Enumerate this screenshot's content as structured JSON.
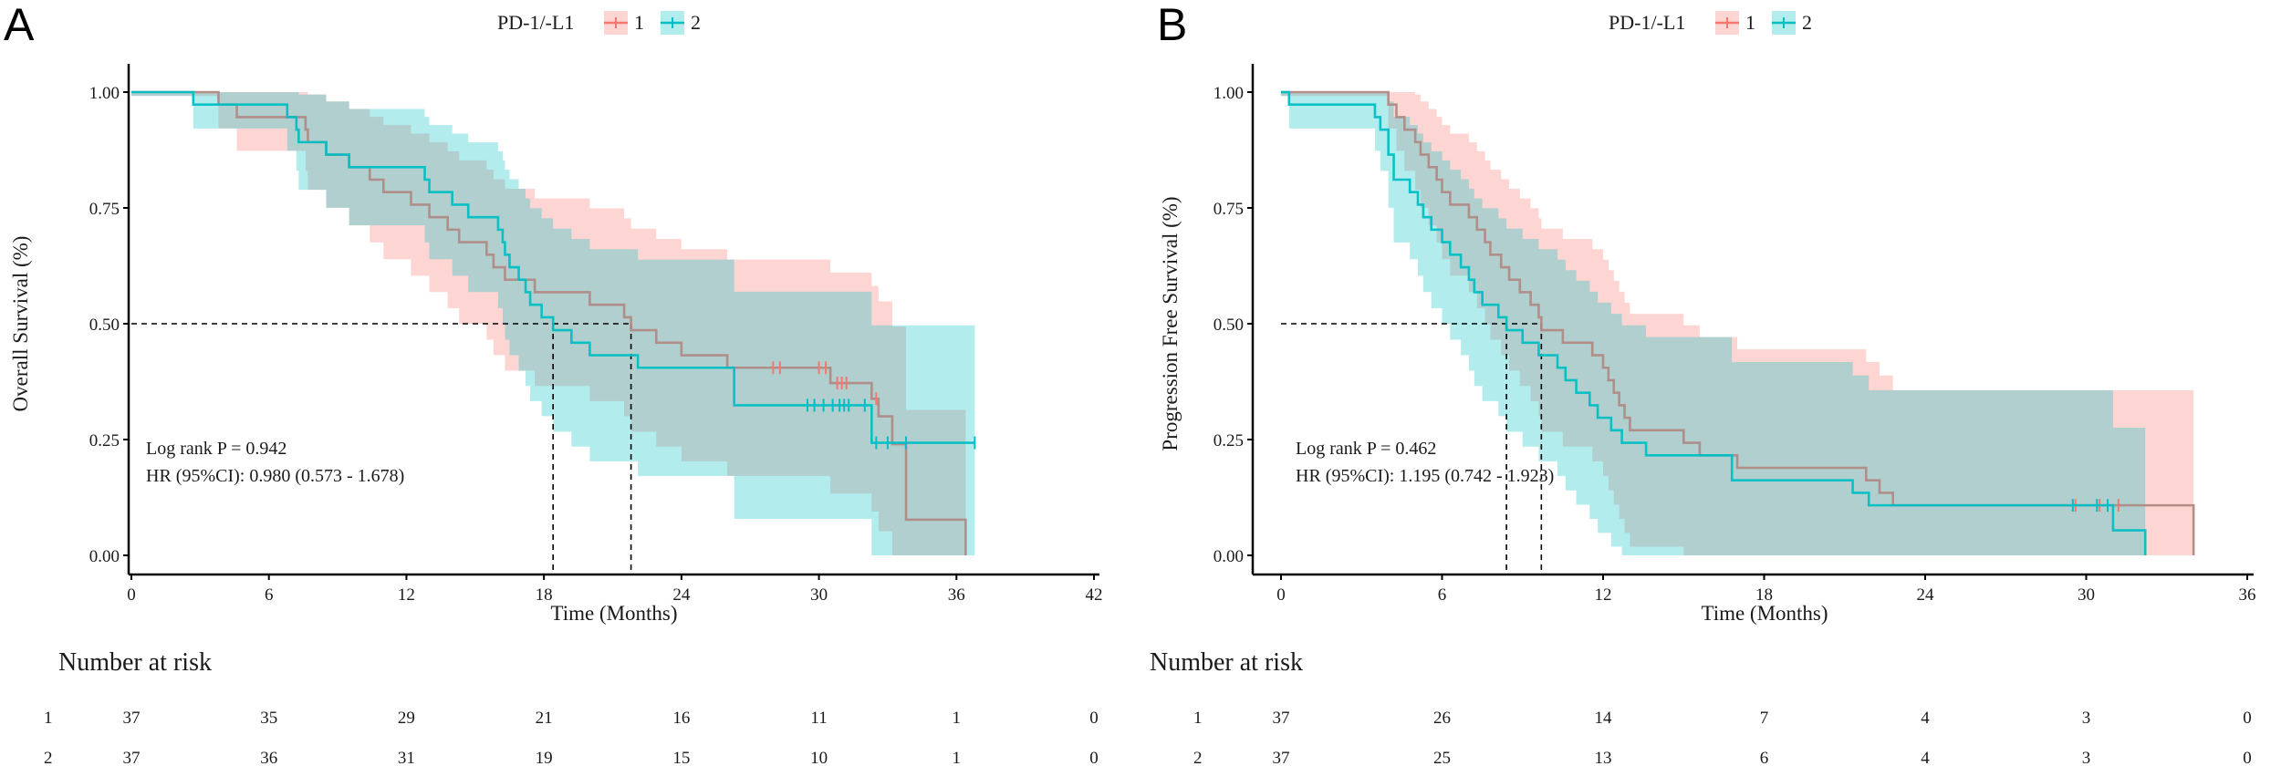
{
  "colors": {
    "group1": "#F8766D",
    "group2": "#00BFC4",
    "band1": "#F8766D",
    "band2": "#00BFC4",
    "overlap_line1": "#B08A85"
  },
  "chart_data": [
    {
      "panel_label": "A",
      "type": "line",
      "subtype": "kaplan-meier",
      "legend": {
        "title": "PD-1/-L1",
        "entries": [
          "1",
          "2"
        ],
        "placement": "top"
      },
      "xlabel": "Time (Months)",
      "ylabel": "Overall Survival (%)",
      "xlim": [
        0,
        42
      ],
      "ylim": [
        0,
        1
      ],
      "xticks": [
        "0",
        "6",
        "12",
        "18",
        "24",
        "30",
        "36",
        "42"
      ],
      "yticks": [
        "0.00",
        "0.25",
        "0.50",
        "0.75",
        "1.00"
      ],
      "annotations": [
        "Log rank P = 0.942",
        "HR (95%CI): 0.980 (0.573 - 1.678)"
      ],
      "medians": [
        21.8,
        18.4
      ],
      "series": [
        {
          "name": "1",
          "end": 36.4,
          "steps": [
            [
              0,
              1
            ],
            [
              3.8,
              0.973
            ],
            [
              4.6,
              0.946
            ],
            [
              7.6,
              0.919
            ],
            [
              7.7,
              0.892
            ],
            [
              8.5,
              0.865
            ],
            [
              9.5,
              0.838
            ],
            [
              10.4,
              0.811
            ],
            [
              11.0,
              0.784
            ],
            [
              12.2,
              0.757
            ],
            [
              13.0,
              0.73
            ],
            [
              13.8,
              0.703
            ],
            [
              14.3,
              0.676
            ],
            [
              15.5,
              0.649
            ],
            [
              15.8,
              0.622
            ],
            [
              16.3,
              0.595
            ],
            [
              17.6,
              0.568
            ],
            [
              20.0,
              0.541
            ],
            [
              21.5,
              0.514
            ],
            [
              21.8,
              0.486
            ],
            [
              22.9,
              0.459
            ],
            [
              24.0,
              0.432
            ],
            [
              26.0,
              0.405
            ],
            [
              30.5,
              0.372
            ],
            [
              32.3,
              0.338
            ],
            [
              32.6,
              0.3
            ],
            [
              33.2,
              0.24
            ],
            [
              33.8,
              0.077
            ],
            [
              36.4,
              0
            ]
          ],
          "censored": [
            28.0,
            28.3,
            30.0,
            30.3,
            30.8,
            31.0,
            31.2,
            32.5
          ]
        },
        {
          "name": "2",
          "end": 36.8,
          "steps": [
            [
              0,
              1
            ],
            [
              2.7,
              0.973
            ],
            [
              6.8,
              0.946
            ],
            [
              7.2,
              0.919
            ],
            [
              7.3,
              0.892
            ],
            [
              8.5,
              0.865
            ],
            [
              9.5,
              0.838
            ],
            [
              12.8,
              0.811
            ],
            [
              13.0,
              0.784
            ],
            [
              14.0,
              0.757
            ],
            [
              14.7,
              0.73
            ],
            [
              16.0,
              0.703
            ],
            [
              16.2,
              0.676
            ],
            [
              16.3,
              0.649
            ],
            [
              16.5,
              0.622
            ],
            [
              16.9,
              0.595
            ],
            [
              17.2,
              0.568
            ],
            [
              17.4,
              0.541
            ],
            [
              17.9,
              0.514
            ],
            [
              18.4,
              0.486
            ],
            [
              19.2,
              0.459
            ],
            [
              20.0,
              0.432
            ],
            [
              22.1,
              0.405
            ],
            [
              26.3,
              0.324
            ],
            [
              32.3,
              0.243
            ]
          ],
          "censored": [
            29.5,
            29.8,
            30.2,
            30.6,
            30.9,
            31.1,
            31.3,
            32.0,
            32.5,
            33.0,
            33.8,
            36.8
          ]
        }
      ],
      "risk_table": {
        "title": "Number at risk",
        "rows": [
          {
            "label": "1",
            "values": [
              "37",
              "35",
              "29",
              "21",
              "16",
              "11",
              "1",
              "0"
            ]
          },
          {
            "label": "2",
            "values": [
              "37",
              "36",
              "31",
              "19",
              "15",
              "10",
              "1",
              "0"
            ]
          }
        ]
      }
    },
    {
      "panel_label": "B",
      "type": "line",
      "subtype": "kaplan-meier",
      "legend": {
        "title": "PD-1/-L1",
        "entries": [
          "1",
          "2"
        ],
        "placement": "top"
      },
      "xlabel": "Time (Months)",
      "ylabel": "Progression Free Survival (%)",
      "xlim": [
        0,
        36
      ],
      "ylim": [
        0,
        1
      ],
      "xticks": [
        "0",
        "6",
        "12",
        "18",
        "24",
        "30",
        "36"
      ],
      "yticks": [
        "0.00",
        "0.25",
        "0.50",
        "0.75",
        "1.00"
      ],
      "annotations": [
        "Log rank P = 0.462",
        "HR (95%CI): 1.195 (0.742 - 1.923)"
      ],
      "medians": [
        9.7,
        8.4
      ],
      "series": [
        {
          "name": "1",
          "end": 34.0,
          "steps": [
            [
              0,
              1
            ],
            [
              4.0,
              0.973
            ],
            [
              4.3,
              0.946
            ],
            [
              4.6,
              0.919
            ],
            [
              5.0,
              0.892
            ],
            [
              5.2,
              0.865
            ],
            [
              5.5,
              0.838
            ],
            [
              5.8,
              0.811
            ],
            [
              6.0,
              0.784
            ],
            [
              6.3,
              0.757
            ],
            [
              7.0,
              0.73
            ],
            [
              7.3,
              0.703
            ],
            [
              7.6,
              0.676
            ],
            [
              7.8,
              0.649
            ],
            [
              8.2,
              0.622
            ],
            [
              8.5,
              0.595
            ],
            [
              8.9,
              0.568
            ],
            [
              9.3,
              0.541
            ],
            [
              9.6,
              0.514
            ],
            [
              9.7,
              0.486
            ],
            [
              10.5,
              0.459
            ],
            [
              11.6,
              0.432
            ],
            [
              12.0,
              0.405
            ],
            [
              12.2,
              0.378
            ],
            [
              12.4,
              0.351
            ],
            [
              12.6,
              0.324
            ],
            [
              12.8,
              0.297
            ],
            [
              13.0,
              0.27
            ],
            [
              15.0,
              0.243
            ],
            [
              15.6,
              0.216
            ],
            [
              17.0,
              0.189
            ],
            [
              21.8,
              0.162
            ],
            [
              22.3,
              0.135
            ],
            [
              22.8,
              0.108
            ],
            [
              34.0,
              0
            ]
          ],
          "censored": [
            29.6,
            30.5,
            31.2
          ]
        },
        {
          "name": "2",
          "end": 32.2,
          "steps": [
            [
              0,
              1
            ],
            [
              0.3,
              0.973
            ],
            [
              3.5,
              0.946
            ],
            [
              3.7,
              0.919
            ],
            [
              4.0,
              0.865
            ],
            [
              4.2,
              0.811
            ],
            [
              4.8,
              0.784
            ],
            [
              5.1,
              0.757
            ],
            [
              5.3,
              0.73
            ],
            [
              5.6,
              0.703
            ],
            [
              6.0,
              0.676
            ],
            [
              6.3,
              0.649
            ],
            [
              6.7,
              0.622
            ],
            [
              7.0,
              0.595
            ],
            [
              7.2,
              0.568
            ],
            [
              7.5,
              0.541
            ],
            [
              8.1,
              0.514
            ],
            [
              8.4,
              0.486
            ],
            [
              9.0,
              0.459
            ],
            [
              9.6,
              0.432
            ],
            [
              10.3,
              0.405
            ],
            [
              10.6,
              0.378
            ],
            [
              11.0,
              0.351
            ],
            [
              11.5,
              0.324
            ],
            [
              11.8,
              0.297
            ],
            [
              12.3,
              0.27
            ],
            [
              12.7,
              0.243
            ],
            [
              13.6,
              0.216
            ],
            [
              16.8,
              0.162
            ],
            [
              21.3,
              0.135
            ],
            [
              21.9,
              0.108
            ],
            [
              31.0,
              0.054
            ],
            [
              32.2,
              0
            ]
          ],
          "censored": [
            29.5,
            30.4,
            30.8
          ]
        }
      ],
      "risk_table": {
        "title": "Number at risk",
        "rows": [
          {
            "label": "1",
            "values": [
              "37",
              "26",
              "14",
              "7",
              "4",
              "3",
              "0"
            ]
          },
          {
            "label": "2",
            "values": [
              "37",
              "25",
              "13",
              "6",
              "4",
              "3",
              "0"
            ]
          }
        ]
      }
    }
  ]
}
